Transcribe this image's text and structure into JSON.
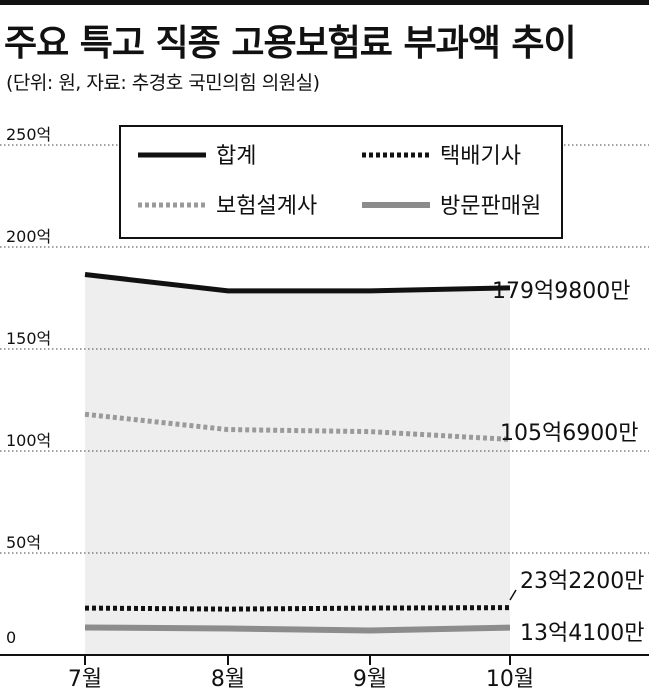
{
  "chart_data": {
    "type": "line",
    "title": "주요 특고 직종 고용보험료 부과액 추이",
    "subtitle": "(단위: 원, 자료: 추경호 국민의힘 의원실)",
    "categories": [
      "7월",
      "8월",
      "9월",
      "10월"
    ],
    "ylim": [
      0,
      250
    ],
    "yticks": [
      "0",
      "50억",
      "100억",
      "150억",
      "200억",
      "250억"
    ],
    "ytick_values": [
      0,
      50,
      100,
      150,
      200,
      250
    ],
    "legend_position": "top",
    "series": [
      {
        "name": "합계",
        "values": [
          186.5,
          178.5,
          178.5,
          179.98
        ],
        "color": "#111111",
        "style": "solid",
        "width": 5,
        "shaded": true,
        "end_label": "179억9800만"
      },
      {
        "name": "택배기사",
        "values": [
          23.0,
          22.5,
          23.0,
          23.22
        ],
        "color": "#111111",
        "style": "dotted",
        "width": 5,
        "end_label": "23억2200만"
      },
      {
        "name": "보험설계사",
        "values": [
          118.0,
          110.5,
          109.5,
          105.69
        ],
        "color": "#9a9a9a",
        "style": "dotted",
        "width": 5,
        "end_label": "105억6900만"
      },
      {
        "name": "방문판매원",
        "values": [
          13.5,
          13.0,
          12.0,
          13.41
        ],
        "color": "#8c8c8c",
        "style": "solid",
        "width": 6,
        "end_label": "13억4100만"
      }
    ],
    "shade_color": "#eeeeee",
    "grid": "dotted"
  }
}
